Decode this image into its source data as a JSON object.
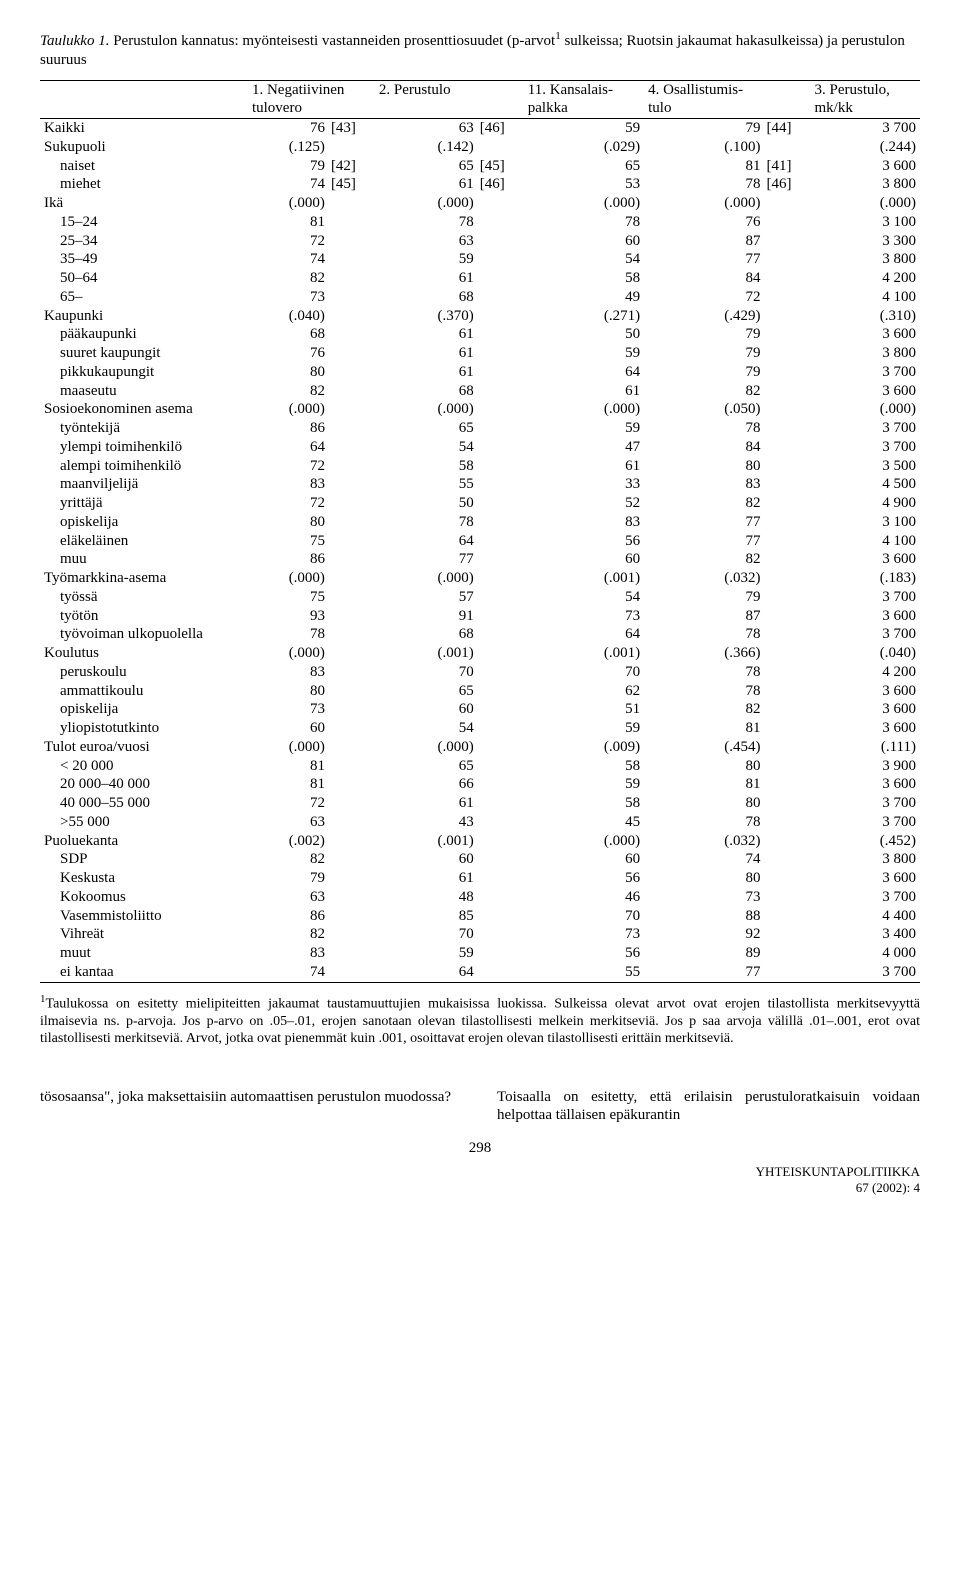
{
  "title_prefix": "Taulukko 1.",
  "title_rest": " Perustulon kannatus: myönteisesti vastanneiden prosenttiosuudet (p-arvot",
  "title_sup": "1",
  "title_tail": " sulkeissa; Ruotsin jakaumat hakasulkeissa) ja perustulon suuruus",
  "headers": [
    {
      "a": "1. Negatiivinen",
      "b": "tulovero"
    },
    {
      "a": "2. Perustulo",
      "b": ""
    },
    {
      "a": "11. Kansalais-",
      "b": "palkka"
    },
    {
      "a": "4. Osallistumis-",
      "b": "tulo"
    },
    {
      "a": "3. Perustulo,",
      "b": "mk/kk"
    }
  ],
  "rows": [
    {
      "label": "Kaikki",
      "indent": false,
      "c1": "76",
      "b1": "[43]",
      "c2": "63",
      "b2": "[46]",
      "c3": "59",
      "c4": "79",
      "b4": "[44]",
      "c5": "3 700"
    },
    {
      "label": "Sukupuoli",
      "indent": false,
      "c1": "(.125)",
      "b1": "",
      "c2": "(.142)",
      "b2": "",
      "c3": "(.029)",
      "c4": "(.100)",
      "b4": "",
      "c5": "(.244)"
    },
    {
      "label": "naiset",
      "indent": true,
      "c1": "79",
      "b1": "[42]",
      "c2": "65",
      "b2": "[45]",
      "c3": "65",
      "c4": "81",
      "b4": "[41]",
      "c5": "3 600"
    },
    {
      "label": "miehet",
      "indent": true,
      "c1": "74",
      "b1": "[45]",
      "c2": "61",
      "b2": "[46]",
      "c3": "53",
      "c4": "78",
      "b4": "[46]",
      "c5": "3 800"
    },
    {
      "label": "Ikä",
      "indent": false,
      "c1": "(.000)",
      "b1": "",
      "c2": "(.000)",
      "b2": "",
      "c3": "(.000)",
      "c4": "(.000)",
      "b4": "",
      "c5": "(.000)"
    },
    {
      "label": "15–24",
      "indent": true,
      "c1": "81",
      "b1": "",
      "c2": "78",
      "b2": "",
      "c3": "78",
      "c4": "76",
      "b4": "",
      "c5": "3 100"
    },
    {
      "label": "25–34",
      "indent": true,
      "c1": "72",
      "b1": "",
      "c2": "63",
      "b2": "",
      "c3": "60",
      "c4": "87",
      "b4": "",
      "c5": "3 300"
    },
    {
      "label": "35–49",
      "indent": true,
      "c1": "74",
      "b1": "",
      "c2": "59",
      "b2": "",
      "c3": "54",
      "c4": "77",
      "b4": "",
      "c5": "3 800"
    },
    {
      "label": "50–64",
      "indent": true,
      "c1": "82",
      "b1": "",
      "c2": "61",
      "b2": "",
      "c3": "58",
      "c4": "84",
      "b4": "",
      "c5": "4 200"
    },
    {
      "label": "65–",
      "indent": true,
      "c1": "73",
      "b1": "",
      "c2": "68",
      "b2": "",
      "c3": "49",
      "c4": "72",
      "b4": "",
      "c5": "4 100"
    },
    {
      "label": "Kaupunki",
      "indent": false,
      "c1": "(.040)",
      "b1": "",
      "c2": "(.370)",
      "b2": "",
      "c3": "(.271)",
      "c4": "(.429)",
      "b4": "",
      "c5": "(.310)"
    },
    {
      "label": "pääkaupunki",
      "indent": true,
      "c1": "68",
      "b1": "",
      "c2": "61",
      "b2": "",
      "c3": "50",
      "c4": "79",
      "b4": "",
      "c5": "3 600"
    },
    {
      "label": "suuret kaupungit",
      "indent": true,
      "c1": "76",
      "b1": "",
      "c2": "61",
      "b2": "",
      "c3": "59",
      "c4": "79",
      "b4": "",
      "c5": "3 800"
    },
    {
      "label": "pikkukaupungit",
      "indent": true,
      "c1": "80",
      "b1": "",
      "c2": "61",
      "b2": "",
      "c3": "64",
      "c4": "79",
      "b4": "",
      "c5": "3 700"
    },
    {
      "label": "maaseutu",
      "indent": true,
      "c1": "82",
      "b1": "",
      "c2": "68",
      "b2": "",
      "c3": "61",
      "c4": "82",
      "b4": "",
      "c5": "3 600"
    },
    {
      "label": "Sosioekonominen asema",
      "indent": false,
      "c1": "(.000)",
      "b1": "",
      "c2": "(.000)",
      "b2": "",
      "c3": "(.000)",
      "c4": "(.050)",
      "b4": "",
      "c5": "(.000)"
    },
    {
      "label": "työntekijä",
      "indent": true,
      "c1": "86",
      "b1": "",
      "c2": "65",
      "b2": "",
      "c3": "59",
      "c4": "78",
      "b4": "",
      "c5": "3 700"
    },
    {
      "label": "ylempi toimihenkilö",
      "indent": true,
      "c1": "64",
      "b1": "",
      "c2": "54",
      "b2": "",
      "c3": "47",
      "c4": "84",
      "b4": "",
      "c5": "3 700"
    },
    {
      "label": "alempi toimihenkilö",
      "indent": true,
      "c1": "72",
      "b1": "",
      "c2": "58",
      "b2": "",
      "c3": "61",
      "c4": "80",
      "b4": "",
      "c5": "3 500"
    },
    {
      "label": "maanviljelijä",
      "indent": true,
      "c1": "83",
      "b1": "",
      "c2": "55",
      "b2": "",
      "c3": "33",
      "c4": "83",
      "b4": "",
      "c5": "4 500"
    },
    {
      "label": "yrittäjä",
      "indent": true,
      "c1": "72",
      "b1": "",
      "c2": "50",
      "b2": "",
      "c3": "52",
      "c4": "82",
      "b4": "",
      "c5": "4 900"
    },
    {
      "label": "opiskelija",
      "indent": true,
      "c1": "80",
      "b1": "",
      "c2": "78",
      "b2": "",
      "c3": "83",
      "c4": "77",
      "b4": "",
      "c5": "3 100"
    },
    {
      "label": "eläkeläinen",
      "indent": true,
      "c1": "75",
      "b1": "",
      "c2": "64",
      "b2": "",
      "c3": "56",
      "c4": "77",
      "b4": "",
      "c5": "4 100"
    },
    {
      "label": "muu",
      "indent": true,
      "c1": "86",
      "b1": "",
      "c2": "77",
      "b2": "",
      "c3": "60",
      "c4": "82",
      "b4": "",
      "c5": "3 600"
    },
    {
      "label": "Työmarkkina-asema",
      "indent": false,
      "c1": "(.000)",
      "b1": "",
      "c2": "(.000)",
      "b2": "",
      "c3": "(.001)",
      "c4": "(.032)",
      "b4": "",
      "c5": "(.183)"
    },
    {
      "label": "työssä",
      "indent": true,
      "c1": "75",
      "b1": "",
      "c2": "57",
      "b2": "",
      "c3": "54",
      "c4": "79",
      "b4": "",
      "c5": "3 700"
    },
    {
      "label": "työtön",
      "indent": true,
      "c1": "93",
      "b1": "",
      "c2": "91",
      "b2": "",
      "c3": "73",
      "c4": "87",
      "b4": "",
      "c5": "3 600"
    },
    {
      "label": "työvoiman ulkopuolella",
      "indent": true,
      "c1": "78",
      "b1": "",
      "c2": "68",
      "b2": "",
      "c3": "64",
      "c4": "78",
      "b4": "",
      "c5": "3 700"
    },
    {
      "label": "Koulutus",
      "indent": false,
      "c1": "(.000)",
      "b1": "",
      "c2": "(.001)",
      "b2": "",
      "c3": "(.001)",
      "c4": "(.366)",
      "b4": "",
      "c5": "(.040)"
    },
    {
      "label": "peruskoulu",
      "indent": true,
      "c1": "83",
      "b1": "",
      "c2": "70",
      "b2": "",
      "c3": "70",
      "c4": "78",
      "b4": "",
      "c5": "4 200"
    },
    {
      "label": "ammattikoulu",
      "indent": true,
      "c1": "80",
      "b1": "",
      "c2": "65",
      "b2": "",
      "c3": "62",
      "c4": "78",
      "b4": "",
      "c5": "3 600"
    },
    {
      "label": "opiskelija",
      "indent": true,
      "c1": "73",
      "b1": "",
      "c2": "60",
      "b2": "",
      "c3": "51",
      "c4": "82",
      "b4": "",
      "c5": "3 600"
    },
    {
      "label": "yliopistotutkinto",
      "indent": true,
      "c1": "60",
      "b1": "",
      "c2": "54",
      "b2": "",
      "c3": "59",
      "c4": "81",
      "b4": "",
      "c5": "3 600"
    },
    {
      "label": "Tulot euroa/vuosi",
      "indent": false,
      "c1": "(.000)",
      "b1": "",
      "c2": "(.000)",
      "b2": "",
      "c3": "(.009)",
      "c4": "(.454)",
      "b4": "",
      "c5": "(.111)"
    },
    {
      "label": "< 20 000",
      "indent": true,
      "c1": "81",
      "b1": "",
      "c2": "65",
      "b2": "",
      "c3": "58",
      "c4": "80",
      "b4": "",
      "c5": "3 900"
    },
    {
      "label": "20 000–40 000",
      "indent": true,
      "c1": "81",
      "b1": "",
      "c2": "66",
      "b2": "",
      "c3": "59",
      "c4": "81",
      "b4": "",
      "c5": "3 600"
    },
    {
      "label": "40 000–55 000",
      "indent": true,
      "c1": "72",
      "b1": "",
      "c2": "61",
      "b2": "",
      "c3": "58",
      "c4": "80",
      "b4": "",
      "c5": "3 700"
    },
    {
      "label": ">55 000",
      "indent": true,
      "c1": "63",
      "b1": "",
      "c2": "43",
      "b2": "",
      "c3": "45",
      "c4": "78",
      "b4": "",
      "c5": "3 700"
    },
    {
      "label": "Puoluekanta",
      "indent": false,
      "c1": "(.002)",
      "b1": "",
      "c2": "(.001)",
      "b2": "",
      "c3": "(.000)",
      "c4": "(.032)",
      "b4": "",
      "c5": "(.452)"
    },
    {
      "label": "SDP",
      "indent": true,
      "c1": "82",
      "b1": "",
      "c2": "60",
      "b2": "",
      "c3": "60",
      "c4": "74",
      "b4": "",
      "c5": "3 800"
    },
    {
      "label": "Keskusta",
      "indent": true,
      "c1": "79",
      "b1": "",
      "c2": "61",
      "b2": "",
      "c3": "56",
      "c4": "80",
      "b4": "",
      "c5": "3 600"
    },
    {
      "label": "Kokoomus",
      "indent": true,
      "c1": "63",
      "b1": "",
      "c2": "48",
      "b2": "",
      "c3": "46",
      "c4": "73",
      "b4": "",
      "c5": "3 700"
    },
    {
      "label": "Vasemmistoliitto",
      "indent": true,
      "c1": "86",
      "b1": "",
      "c2": "85",
      "b2": "",
      "c3": "70",
      "c4": "88",
      "b4": "",
      "c5": "4 400"
    },
    {
      "label": "Vihreät",
      "indent": true,
      "c1": "82",
      "b1": "",
      "c2": "70",
      "b2": "",
      "c3": "73",
      "c4": "92",
      "b4": "",
      "c5": "3 400"
    },
    {
      "label": "muut",
      "indent": true,
      "c1": "83",
      "b1": "",
      "c2": "59",
      "b2": "",
      "c3": "56",
      "c4": "89",
      "b4": "",
      "c5": "4 000"
    },
    {
      "label": "ei kantaa",
      "indent": true,
      "c1": "74",
      "b1": "",
      "c2": "64",
      "b2": "",
      "c3": "55",
      "c4": "77",
      "b4": "",
      "c5": "3 700"
    }
  ],
  "footnote_sup": "1",
  "footnote": "Taulukossa on esitetty mielipiteitten jakaumat taustamuuttujien mukaisissa luokissa. Sulkeissa olevat arvot ovat erojen tilastollista merkitsevyyttä ilmaisevia ns. p-arvoja. Jos p-arvo on .05–.01, erojen sanotaan olevan tilastollisesti melkein merkitseviä. Jos p saa arvoja välillä .01–.001, erot ovat tilastollisesti merkitseviä. Arvot, jotka ovat pienemmät kuin .001, osoittavat erojen olevan tilastollisesti erittäin merkitseviä.",
  "bottom_left": "tösosaansa\", joka maksettaisiin automaattisen perustulon muodossa?",
  "bottom_right": "Toisaalla on esitetty, että erilaisin perustuloratkaisuin voidaan helpottaa tällaisen epäkurantin",
  "pgnum": "298",
  "journal_a": "YHTEISKUNTAPOLITIIKKA",
  "journal_b": "67 (2002): 4"
}
